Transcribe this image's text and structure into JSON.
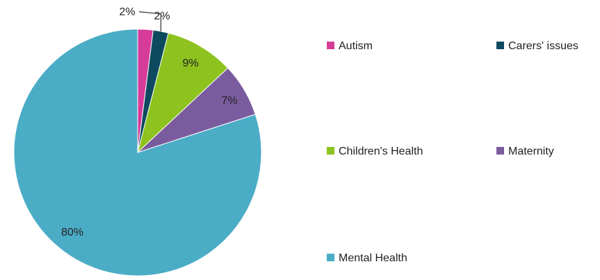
{
  "chart_data": {
    "type": "pie",
    "title": "",
    "categories": [
      "Autism",
      "Carers' issues",
      "Children's Health",
      "Maternity",
      "Mental Health"
    ],
    "values": [
      2,
      2,
      9,
      7,
      80
    ],
    "data_labels": [
      "2%",
      "2%",
      "9%",
      "7%",
      "80%"
    ],
    "colors": [
      "#D63B9A",
      "#0E4A5F",
      "#8DC21F",
      "#7A5C9E",
      "#4BACC6"
    ],
    "legend": {
      "placement": "right",
      "entries": [
        {
          "label": "Autism",
          "color": "#D63B9A"
        },
        {
          "label": "Carers' issues",
          "color": "#0E4A5F"
        },
        {
          "label": "Children's Health",
          "color": "#8DC21F"
        },
        {
          "label": "Maternity",
          "color": "#7A5C9E"
        },
        {
          "label": "Mental Health",
          "color": "#4BACC6"
        }
      ]
    }
  }
}
